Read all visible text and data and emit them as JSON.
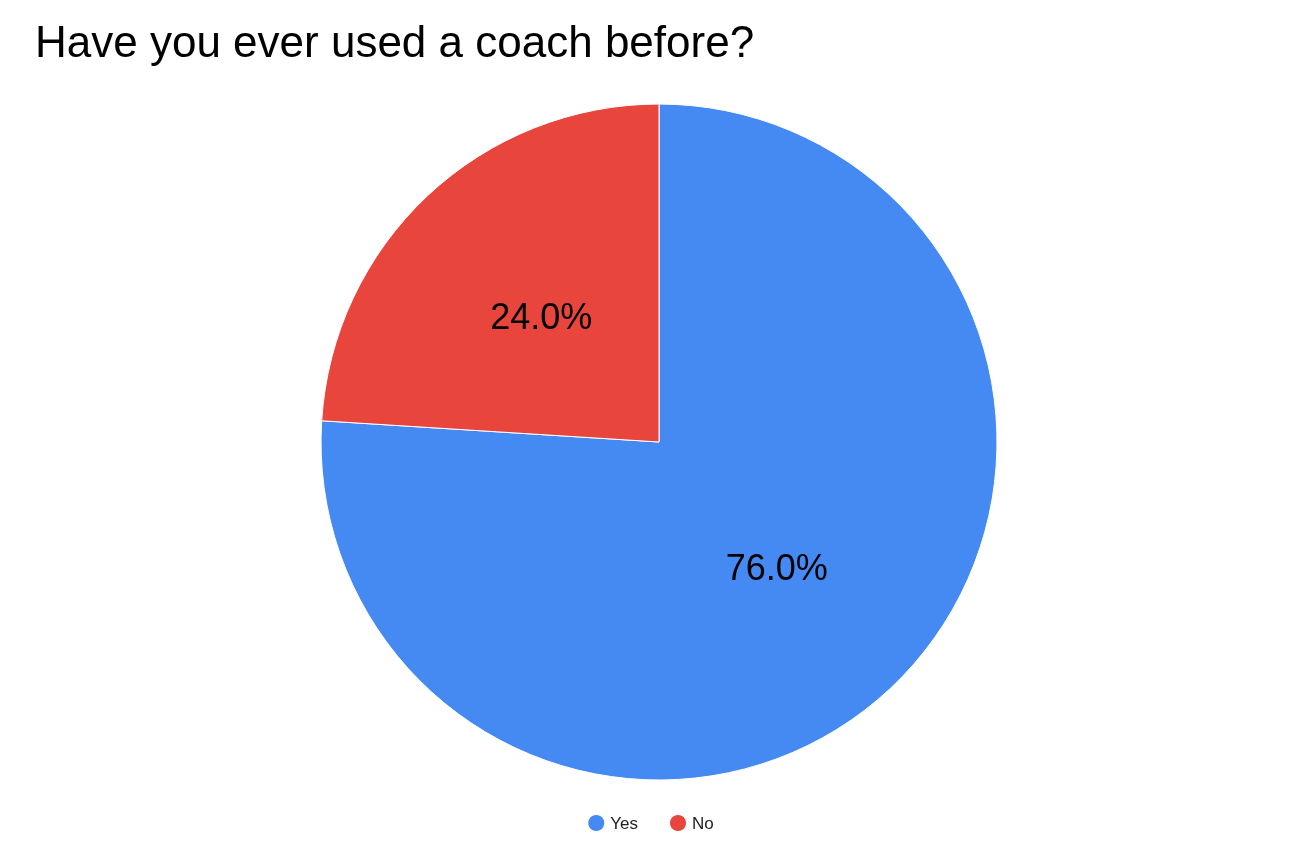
{
  "chart_data": {
    "type": "pie",
    "title": "Have you ever used a coach before?",
    "categories": [
      "Yes",
      "No"
    ],
    "values": [
      76.0,
      24.0
    ],
    "colors": [
      "#4589f2",
      "#e8453c"
    ],
    "value_labels": [
      "76.0%",
      "24.0%"
    ],
    "legend": "bottom"
  }
}
